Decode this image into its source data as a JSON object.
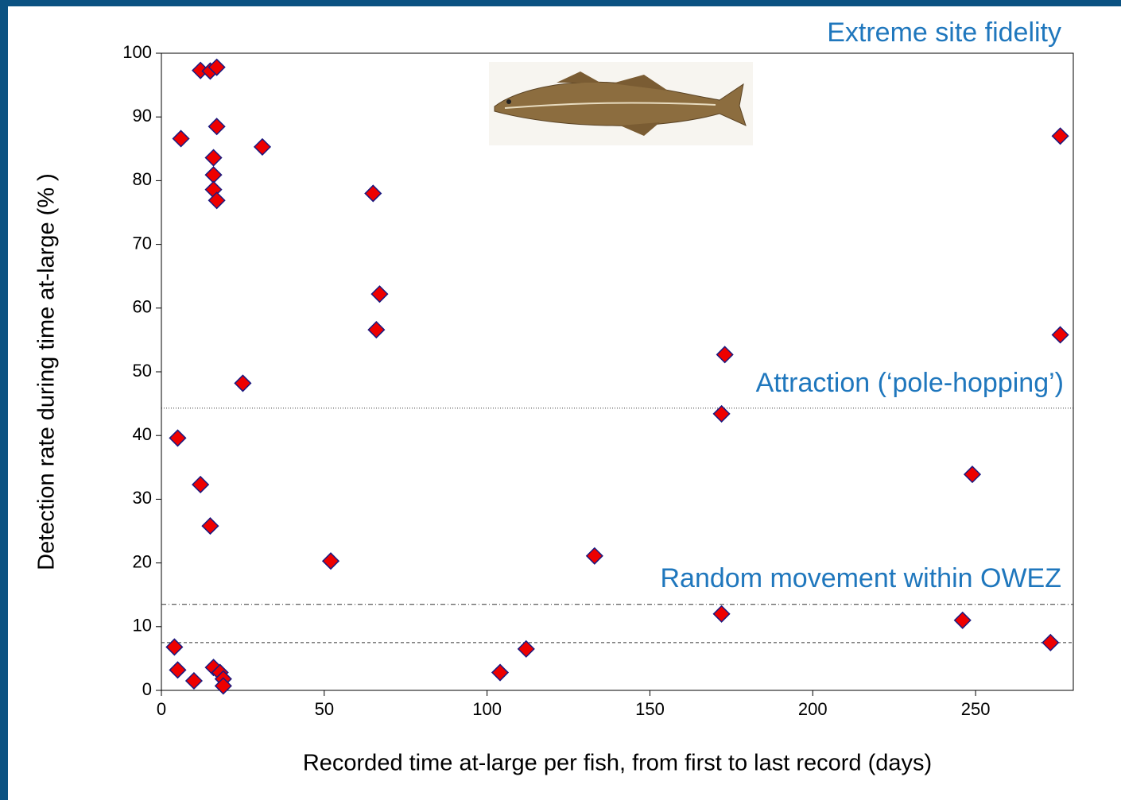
{
  "chart_data": {
    "type": "scatter",
    "x_label": "Recorded time at-large per fish, from first to last record (days)",
    "y_label": "Detection rate during time at-large (% )",
    "annotations": [
      "Extreme site fidelity",
      "Attraction (‘pole-hopping’)",
      "Random movement within OWEZ"
    ],
    "reference_lines": [
      44.3,
      13.5,
      7.5
    ],
    "xlim": [
      0,
      280
    ],
    "xticks": [
      0,
      50,
      100,
      150,
      200,
      250
    ],
    "ylim": [
      0,
      100
    ],
    "yticks": [
      0,
      10,
      20,
      30,
      40,
      50,
      60,
      70,
      80,
      90,
      100
    ],
    "series": [
      {
        "color": "#ee0000",
        "x": [
          12,
          15,
          17,
          6,
          17,
          16,
          16,
          16,
          17,
          31,
          65,
          67,
          66,
          25,
          173,
          276,
          276,
          172,
          5,
          12,
          15,
          249,
          52,
          133,
          172,
          246,
          273,
          4,
          5,
          10,
          16,
          18,
          19,
          19,
          104,
          112
        ],
        "values": [
          97.3,
          97.2,
          97.8,
          86.6,
          88.5,
          83.6,
          80.9,
          78.6,
          76.9,
          85.3,
          78,
          62.2,
          56.6,
          48.2,
          52.7,
          87,
          55.8,
          43.4,
          39.6,
          32.3,
          25.8,
          33.9,
          20.3,
          21.1,
          12,
          11,
          7.5,
          6.8,
          3.2,
          1.5,
          3.6,
          2.8,
          1.8,
          0.7,
          2.8,
          6.5
        ]
      }
    ]
  }
}
